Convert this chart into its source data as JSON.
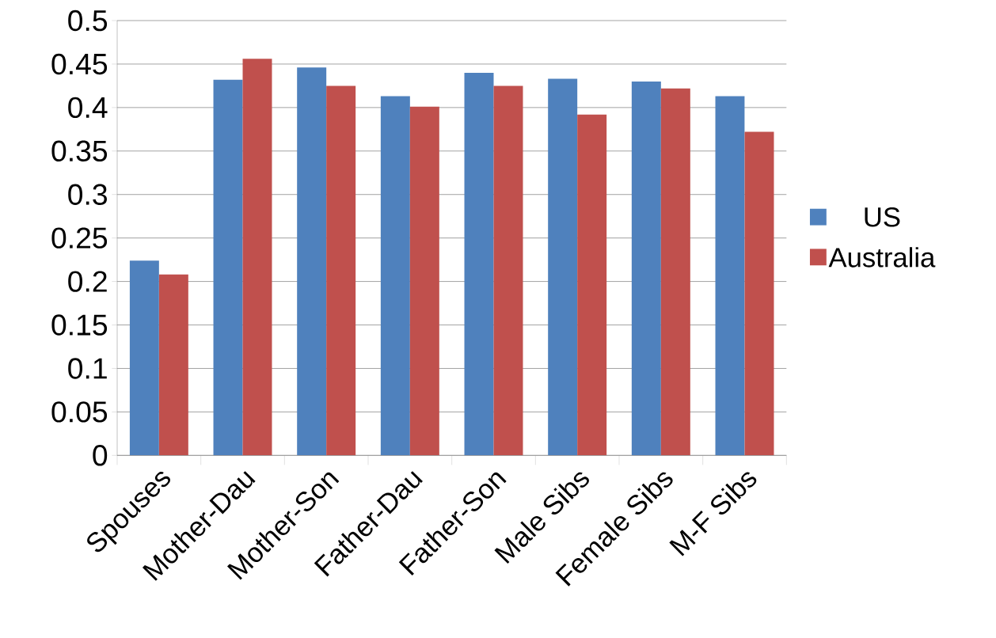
{
  "chart_data": {
    "type": "bar",
    "categories": [
      "Spouses",
      "Mother-Dau",
      "Mother-Son",
      "Father-Dau",
      "Father-Son",
      "Male Sibs",
      "Female Sibs",
      "M-F Sibs"
    ],
    "series": [
      {
        "name": "US",
        "color": "#4f81bd",
        "values": [
          0.224,
          0.432,
          0.446,
          0.413,
          0.44,
          0.433,
          0.43,
          0.413
        ]
      },
      {
        "name": "Australia",
        "color": "#c0504d",
        "values": [
          0.208,
          0.456,
          0.425,
          0.401,
          0.425,
          0.392,
          0.422,
          0.372
        ]
      }
    ],
    "ylim": [
      0,
      0.5
    ],
    "yticks": [
      0,
      0.05,
      0.1,
      0.15,
      0.2,
      0.25,
      0.3,
      0.35,
      0.4,
      0.45,
      0.5
    ],
    "grid": "y",
    "legend": "right"
  }
}
